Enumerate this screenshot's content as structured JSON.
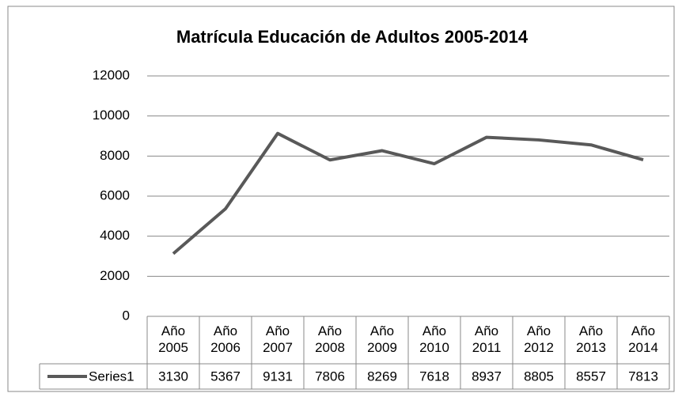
{
  "chart_data": {
    "type": "line",
    "title": "Matrícula Educación de Adultos 2005-2014",
    "categories": [
      "Año 2005",
      "Año 2006",
      "Año 2007",
      "Año 2008",
      "Año 2009",
      "Año 2010",
      "Año 2011",
      "Año 2012",
      "Año 2013",
      "Año 2014"
    ],
    "series": [
      {
        "name": "Series1",
        "color": "#595959",
        "values": [
          3130,
          5367,
          9131,
          7806,
          8269,
          7618,
          8937,
          8805,
          8557,
          7813
        ]
      }
    ],
    "ylim": [
      0,
      12000
    ],
    "yticks": [
      0,
      2000,
      4000,
      6000,
      8000,
      10000,
      12000
    ],
    "grid": true,
    "data_table": true
  }
}
